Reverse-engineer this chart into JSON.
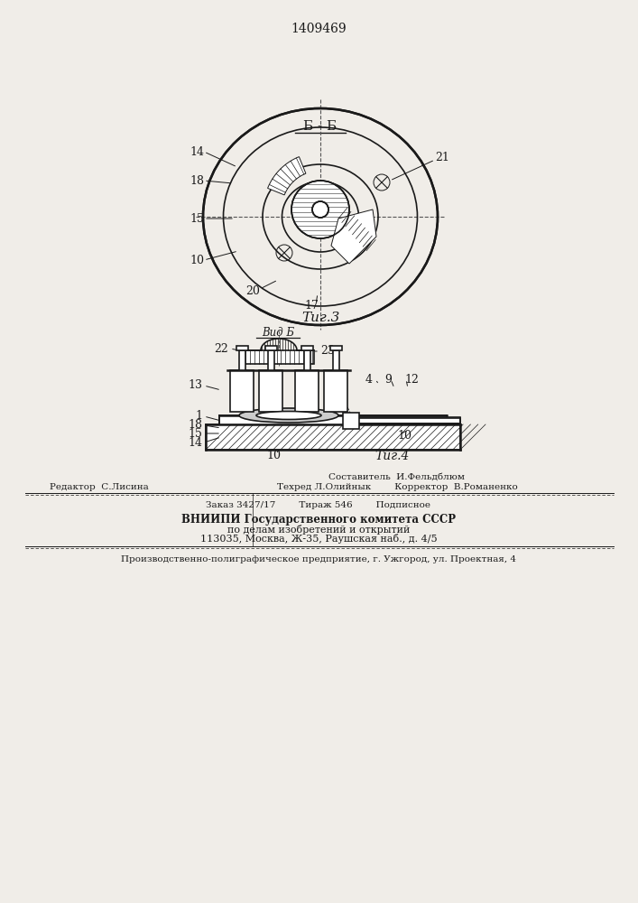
{
  "patent_number": "1409469",
  "fig3_label": "Б - Б",
  "fig3_caption": "Τиг.3",
  "fig4_view_label": "Вид Б",
  "fig4_caption": "Τиг.4",
  "bg_color": "#f0ede8",
  "line_color": "#1a1a1a",
  "footer_lines": [
    "Составитель  И.Фельдблюм",
    "Техред Л.Олийнык        Корректор  В.Романенко",
    "Редактор  С.Лисина",
    "Заказ 3427/17        Тираж 546        Подписное",
    "ВНИИПИ Государственного комитета СССР",
    "по делам изобретений и открытий",
    "113035, Москва, Ж-35, Раушская наб., д. 4/5",
    "Производственно-полиграфическое предприятие, г. Ужгород, ул. Проектная, 4"
  ]
}
